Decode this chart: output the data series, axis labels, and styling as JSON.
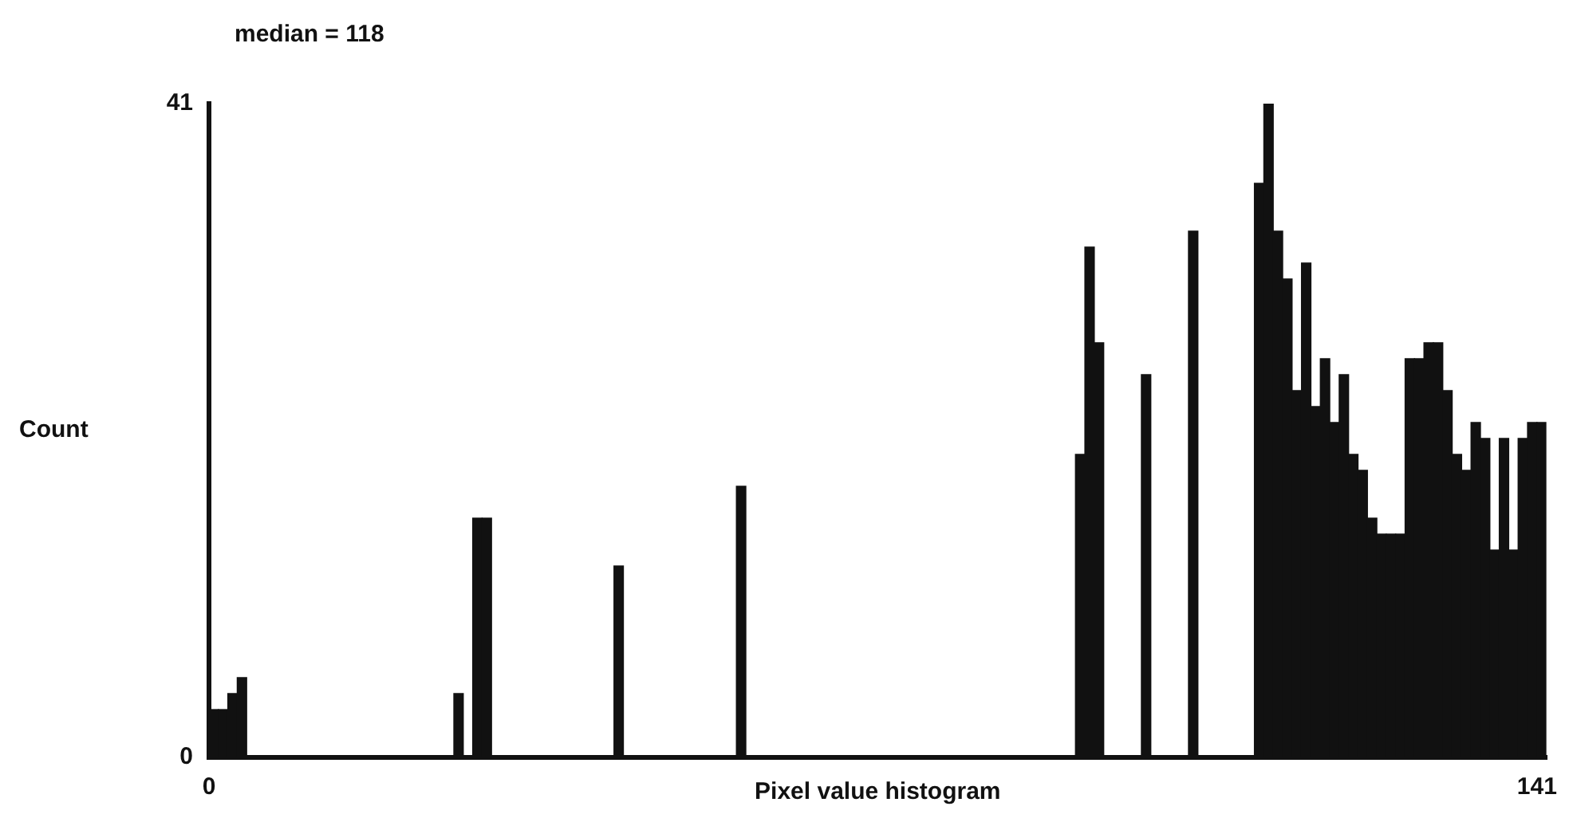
{
  "chart_data": {
    "type": "histogram",
    "title": "median = 118",
    "xlabel": "Pixel value histogram",
    "ylabel": "Count",
    "bins": [
      0,
      1,
      2,
      3,
      4,
      5,
      6,
      7,
      8,
      9,
      10,
      11,
      12,
      13,
      14,
      15,
      16,
      17,
      18,
      19,
      20,
      21,
      22,
      23,
      24,
      25,
      26,
      27,
      28,
      29,
      30,
      31,
      32,
      33,
      34,
      35,
      36,
      37,
      38,
      39,
      40,
      41,
      42,
      43,
      44,
      45,
      46,
      47,
      48,
      49,
      50,
      51,
      52,
      53,
      54,
      55,
      56,
      57,
      58,
      59,
      60,
      61,
      62,
      63,
      64,
      65,
      66,
      67,
      68,
      69,
      70,
      71,
      72,
      73,
      74,
      75,
      76,
      77,
      78,
      79,
      80,
      81,
      82,
      83,
      84,
      85,
      86,
      87,
      88,
      89,
      90,
      91,
      92,
      93,
      94,
      95,
      96,
      97,
      98,
      99,
      100,
      101,
      102,
      103,
      104,
      105,
      106,
      107,
      108,
      109,
      110,
      111,
      112,
      113,
      114,
      115,
      116,
      117,
      118,
      119,
      120,
      121,
      122,
      123,
      124,
      125,
      126,
      127,
      128,
      129,
      130,
      131,
      132,
      133,
      134,
      135,
      136,
      137,
      138,
      139,
      140,
      141,
      142
    ],
    "values": [
      3,
      3,
      4,
      5,
      0,
      0,
      0,
      0,
      0,
      0,
      0,
      0,
      0,
      0,
      0,
      0,
      0,
      0,
      0,
      0,
      0,
      0,
      0,
      0,
      0,
      0,
      4,
      0,
      15,
      15,
      0,
      0,
      0,
      0,
      0,
      0,
      0,
      0,
      0,
      0,
      0,
      0,
      0,
      12,
      0,
      0,
      0,
      0,
      0,
      0,
      0,
      0,
      0,
      0,
      0,
      0,
      17,
      0,
      0,
      0,
      0,
      0,
      0,
      0,
      0,
      0,
      0,
      0,
      0,
      0,
      0,
      0,
      0,
      0,
      0,
      0,
      0,
      0,
      0,
      0,
      0,
      0,
      0,
      0,
      0,
      0,
      0,
      0,
      0,
      0,
      0,
      0,
      19,
      32,
      26,
      0,
      0,
      0,
      0,
      24,
      0,
      0,
      0,
      0,
      33,
      0,
      0,
      0,
      0,
      0,
      0,
      36,
      41,
      33,
      30,
      23,
      31,
      22,
      25,
      21,
      24,
      19,
      18,
      15,
      14,
      14,
      14,
      25,
      25,
      26,
      26,
      23,
      19,
      18,
      21,
      20,
      13,
      20,
      13,
      20,
      21,
      21
    ],
    "color": "#111111",
    "xlim": [
      0,
      142
    ],
    "xticks": [
      0,
      141
    ],
    "ylim": [
      0,
      41
    ],
    "yticks": [
      0,
      41
    ],
    "grid": false,
    "legend": false
  }
}
